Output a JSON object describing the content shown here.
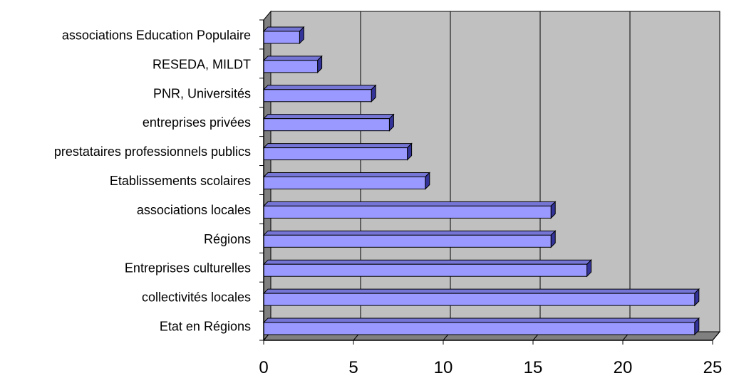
{
  "chart_data": {
    "type": "bar",
    "orientation": "horizontal",
    "style": "3d",
    "categories": [
      "associations Education Populaire",
      "RESEDA, MILDT",
      "PNR, Universités",
      "entreprises privées",
      "prestataires professionnels publics",
      "Etablissements scolaires",
      "associations locales",
      "Régions",
      "Entreprises culturelles",
      "collectivités locales",
      "Etat en Régions"
    ],
    "values": [
      2,
      3,
      6,
      7,
      8,
      9,
      16,
      16,
      18,
      24,
      24
    ],
    "xlim": [
      0,
      25
    ],
    "xticks": [
      "0",
      "5",
      "10",
      "15",
      "20",
      "25"
    ],
    "title": "",
    "xlabel": "",
    "ylabel": "",
    "grid": "vertical",
    "legend": "none",
    "colors": {
      "bar_face": "#9999ff",
      "bar_top": "#7575d6",
      "bar_side": "#333399",
      "plot_back": "#c0c0c0",
      "plot_floor": "#808080",
      "gridline": "#000000",
      "outline": "#000000"
    }
  }
}
